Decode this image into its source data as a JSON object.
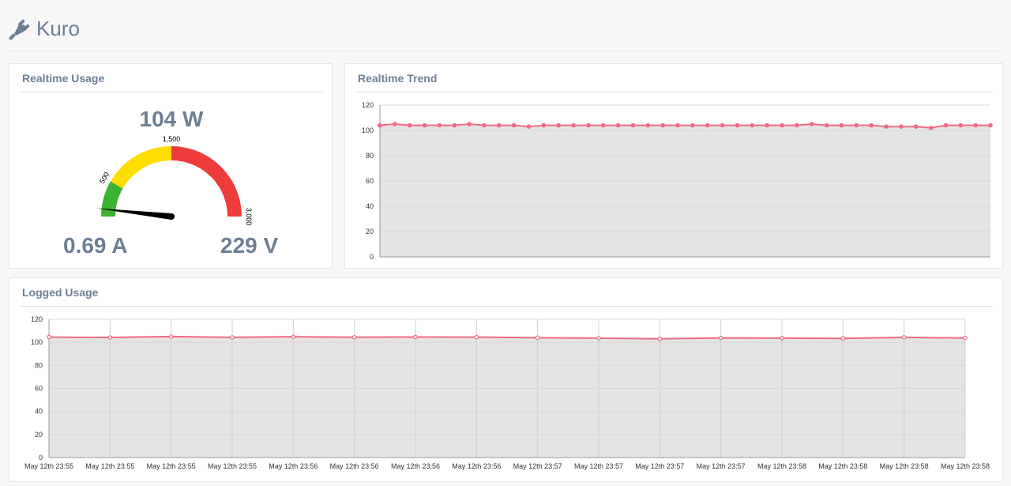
{
  "app": {
    "title": "Kuro",
    "icon": "plug-icon"
  },
  "realtime_usage": {
    "title": "Realtime Usage",
    "power": "104 W",
    "current": "0.69 A",
    "voltage": "229 V",
    "gauge": {
      "value": 104,
      "min": 0,
      "max": 3000,
      "bands": [
        {
          "from": 0,
          "to": 500,
          "color": "#3cb431"
        },
        {
          "from": 500,
          "to": 1500,
          "color": "#ffdd00"
        },
        {
          "from": 1500,
          "to": 3000,
          "color": "#ee3b3b"
        }
      ],
      "tick_labels": [
        "500",
        "1,500",
        "3,000"
      ]
    }
  },
  "realtime_trend": {
    "title": "Realtime Trend",
    "chart_data": {
      "type": "area",
      "ylim": [
        0,
        120
      ],
      "yticks": [
        "0",
        "20",
        "40",
        "60",
        "80",
        "100",
        "120"
      ],
      "x": [
        1,
        2,
        3,
        4,
        5,
        6,
        7,
        8,
        9,
        10,
        11,
        12,
        13,
        14,
        15,
        16,
        17,
        18,
        19,
        20,
        21,
        22,
        23,
        24,
        25,
        26,
        27,
        28,
        29,
        30,
        31,
        32,
        33,
        34,
        35,
        36,
        37,
        38,
        39,
        40,
        41,
        42
      ],
      "values": [
        104,
        105,
        104,
        104,
        104,
        104,
        105,
        104,
        104,
        104,
        103,
        104,
        104,
        104,
        104,
        104,
        104,
        104,
        104,
        104,
        104,
        104,
        104,
        104,
        104,
        104,
        104,
        104,
        104,
        105,
        104,
        104,
        104,
        104,
        103,
        103,
        103,
        102,
        104,
        104,
        104,
        104
      ],
      "grid": true,
      "colors": {
        "line": "#f06a88",
        "fill": "#e4e4e4"
      }
    }
  },
  "logged_usage": {
    "title": "Logged Usage",
    "chart_data": {
      "type": "area",
      "ylim": [
        0,
        120
      ],
      "yticks": [
        "0",
        "20",
        "40",
        "60",
        "80",
        "100",
        "120"
      ],
      "categories": [
        "May 12th 23:55",
        "May 12th 23:55",
        "May 12th 23:55",
        "May 12th 23:55",
        "May 12th 23:56",
        "May 12th 23:56",
        "May 12th 23:56",
        "May 12th 23:56",
        "May 12th 23:57",
        "May 12th 23:57",
        "May 12th 23:57",
        "May 12th 23:57",
        "May 12th 23:58",
        "May 12th 23:58",
        "May 12th 23:58",
        "May 12th 23:58"
      ],
      "values": [
        104.5,
        104.2,
        105.0,
        104.3,
        104.8,
        104.4,
        104.6,
        104.5,
        104.0,
        103.6,
        103.0,
        103.8,
        103.6,
        103.4,
        104.3,
        103.7
      ],
      "grid": true,
      "colors": {
        "line": "#f06a88",
        "fill": "#e4e4e4"
      }
    }
  }
}
